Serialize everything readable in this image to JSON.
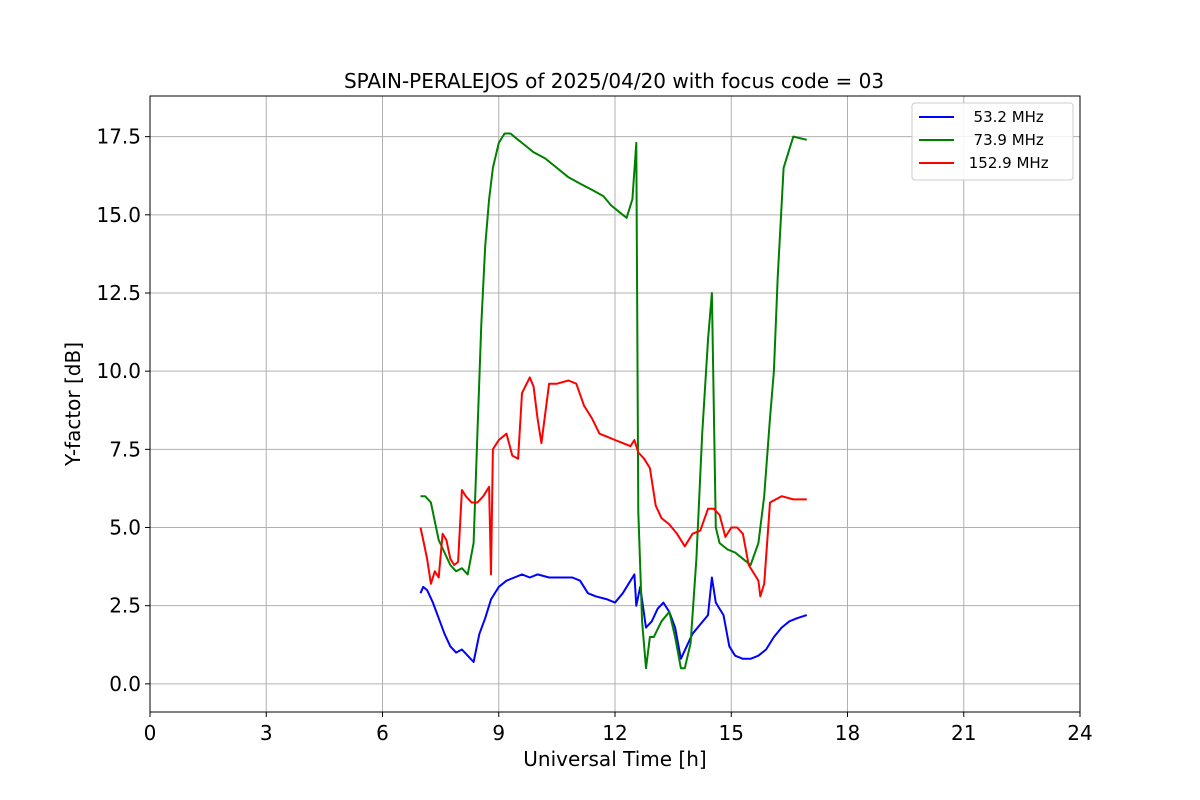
{
  "chart_data": {
    "type": "line",
    "title": "SPAIN-PERALEJOS of 2025/04/20 with focus code = 03",
    "xlabel": "Universal Time [h]",
    "ylabel": "Y-factor [dB]",
    "xlim": [
      0,
      24
    ],
    "ylim": [
      -0.9,
      18.8
    ],
    "xticks": [
      0,
      3,
      6,
      9,
      12,
      15,
      18,
      21,
      24
    ],
    "xtick_labels": [
      "0",
      "3",
      "6",
      "9",
      "12",
      "15",
      "18",
      "21",
      "24"
    ],
    "yticks": [
      0,
      2.5,
      5,
      7.5,
      10,
      12.5,
      15,
      17.5
    ],
    "ytick_labels": [
      "0.0",
      "2.5",
      "5.0",
      "7.5",
      "10.0",
      "12.5",
      "15.0",
      "17.5"
    ],
    "grid": true,
    "legend_position": "top-right",
    "series": [
      {
        "name": "  53.2 MHz",
        "color": "#0000ff",
        "x": [
          6.98,
          7.05,
          7.15,
          7.3,
          7.45,
          7.6,
          7.75,
          7.9,
          8.05,
          8.2,
          8.35,
          8.5,
          8.65,
          8.8,
          9.0,
          9.2,
          9.4,
          9.6,
          9.8,
          10.0,
          10.3,
          10.6,
          10.9,
          11.1,
          11.3,
          11.5,
          11.8,
          12.0,
          12.2,
          12.4,
          12.5,
          12.55,
          12.65,
          12.8,
          12.95,
          13.1,
          13.25,
          13.4,
          13.55,
          13.7,
          13.85,
          14.0,
          14.2,
          14.4,
          14.5,
          14.6,
          14.8,
          14.95,
          15.1,
          15.3,
          15.5,
          15.7,
          15.9,
          16.1,
          16.3,
          16.5,
          16.7,
          16.95
        ],
        "y": [
          2.9,
          3.1,
          3.0,
          2.6,
          2.1,
          1.6,
          1.2,
          1.0,
          1.1,
          0.9,
          0.7,
          1.6,
          2.1,
          2.7,
          3.1,
          3.3,
          3.4,
          3.5,
          3.4,
          3.5,
          3.4,
          3.4,
          3.4,
          3.3,
          2.9,
          2.8,
          2.7,
          2.6,
          2.9,
          3.3,
          3.5,
          2.5,
          3.1,
          1.8,
          2.0,
          2.4,
          2.6,
          2.3,
          1.8,
          0.8,
          1.2,
          1.6,
          1.9,
          2.2,
          3.4,
          2.6,
          2.2,
          1.2,
          0.9,
          0.8,
          0.8,
          0.9,
          1.1,
          1.5,
          1.8,
          2.0,
          2.1,
          2.2
        ]
      },
      {
        "name": "  73.9 MHz",
        "color": "#008000",
        "x": [
          6.98,
          7.1,
          7.25,
          7.35,
          7.45,
          7.6,
          7.75,
          7.9,
          8.05,
          8.2,
          8.35,
          8.45,
          8.55,
          8.65,
          8.75,
          8.85,
          9.0,
          9.15,
          9.3,
          9.5,
          9.7,
          9.9,
          10.2,
          10.5,
          10.8,
          11.1,
          11.4,
          11.7,
          11.9,
          12.1,
          12.3,
          12.45,
          12.55,
          12.6,
          12.7,
          12.8,
          12.9,
          13.0,
          13.2,
          13.4,
          13.55,
          13.7,
          13.8,
          13.95,
          14.1,
          14.25,
          14.4,
          14.5,
          14.6,
          14.7,
          14.9,
          15.1,
          15.3,
          15.5,
          15.7,
          15.85,
          16.0,
          16.1,
          16.2,
          16.35,
          16.6,
          16.95
        ],
        "y": [
          6.0,
          6.0,
          5.8,
          5.2,
          4.6,
          4.2,
          3.8,
          3.6,
          3.7,
          3.5,
          4.5,
          8.0,
          11.5,
          14.0,
          15.5,
          16.5,
          17.3,
          17.6,
          17.6,
          17.4,
          17.2,
          17.0,
          16.8,
          16.5,
          16.2,
          16.0,
          15.8,
          15.6,
          15.3,
          15.1,
          14.9,
          15.5,
          17.3,
          5.5,
          2.0,
          0.5,
          1.5,
          1.5,
          2.0,
          2.3,
          1.5,
          0.5,
          0.5,
          1.3,
          4.0,
          8.0,
          11.0,
          12.5,
          5.0,
          4.5,
          4.3,
          4.2,
          4.0,
          3.8,
          4.5,
          6.0,
          8.5,
          10.0,
          13.0,
          16.5,
          17.5,
          17.4
        ]
      },
      {
        "name": " 152.9 MHz",
        "color": "#ff0000",
        "x": [
          6.98,
          7.05,
          7.15,
          7.25,
          7.35,
          7.45,
          7.55,
          7.65,
          7.75,
          7.85,
          7.95,
          8.05,
          8.15,
          8.3,
          8.45,
          8.6,
          8.75,
          8.8,
          8.85,
          9.0,
          9.2,
          9.35,
          9.5,
          9.6,
          9.8,
          9.9,
          10.0,
          10.1,
          10.3,
          10.5,
          10.8,
          11.0,
          11.2,
          11.4,
          11.6,
          11.8,
          12.0,
          12.2,
          12.4,
          12.5,
          12.6,
          12.75,
          12.9,
          13.05,
          13.2,
          13.4,
          13.6,
          13.8,
          14.0,
          14.2,
          14.4,
          14.55,
          14.7,
          14.85,
          15.0,
          15.15,
          15.3,
          15.45,
          15.6,
          15.7,
          15.75,
          15.85,
          16.0,
          16.3,
          16.6,
          16.95
        ],
        "y": [
          5.0,
          4.6,
          4.0,
          3.2,
          3.6,
          3.4,
          4.8,
          4.6,
          4.0,
          3.8,
          3.9,
          6.2,
          6.0,
          5.8,
          5.8,
          6.0,
          6.3,
          3.5,
          7.5,
          7.8,
          8.0,
          7.3,
          7.2,
          9.3,
          9.8,
          9.5,
          8.5,
          7.7,
          9.6,
          9.6,
          9.7,
          9.6,
          8.9,
          8.5,
          8.0,
          7.9,
          7.8,
          7.7,
          7.6,
          7.8,
          7.4,
          7.2,
          6.9,
          5.7,
          5.3,
          5.1,
          4.8,
          4.4,
          4.8,
          4.9,
          5.6,
          5.6,
          5.4,
          4.7,
          5.0,
          5.0,
          4.8,
          3.8,
          3.5,
          3.3,
          2.8,
          3.2,
          5.8,
          6.0,
          5.9,
          5.9
        ]
      }
    ]
  }
}
